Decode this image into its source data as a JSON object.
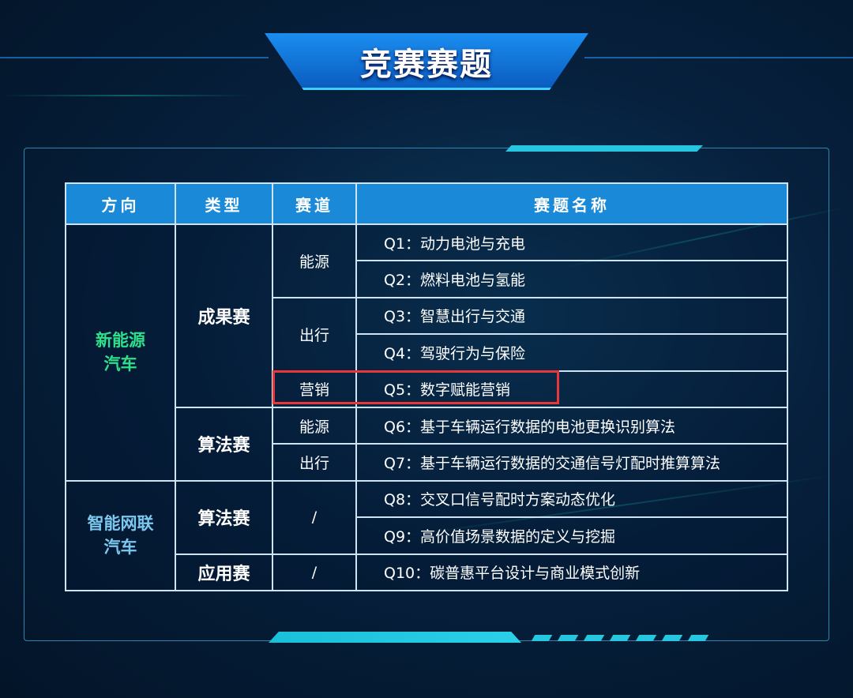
{
  "title": "竞赛赛题",
  "colors": {
    "header": "#1a8ad8",
    "highlight": "#e8363a",
    "dir_new_energy": "#2fe08a",
    "dir_icv": "#7cc8ef"
  },
  "table": {
    "headers": [
      "方向",
      "类型",
      "赛道",
      "赛题名称"
    ],
    "directions": [
      "新能源汽车",
      "智能网联汽车"
    ],
    "types": [
      "成果赛",
      "算法赛",
      "算法赛",
      "应用赛"
    ],
    "tracks": [
      "能源",
      "出行",
      "营销",
      "能源",
      "出行",
      "/",
      "/"
    ],
    "questions": [
      "Q1：动力电池与充电",
      "Q2：燃料电池与氢能",
      "Q3：智慧出行与交通",
      "Q4：驾驶行为与保险",
      "Q5：数字赋能营销",
      "Q6：基于车辆运行数据的电池更换识别算法",
      "Q7：基于车辆运行数据的交通信号灯配时推算算法",
      "Q8：交叉口信号配时方案动态优化",
      "Q9：高价值场景数据的定义与挖掘",
      "Q10：碳普惠平台设计与商业模式创新"
    ],
    "highlighted_row": "Q5：数字赋能营销"
  }
}
